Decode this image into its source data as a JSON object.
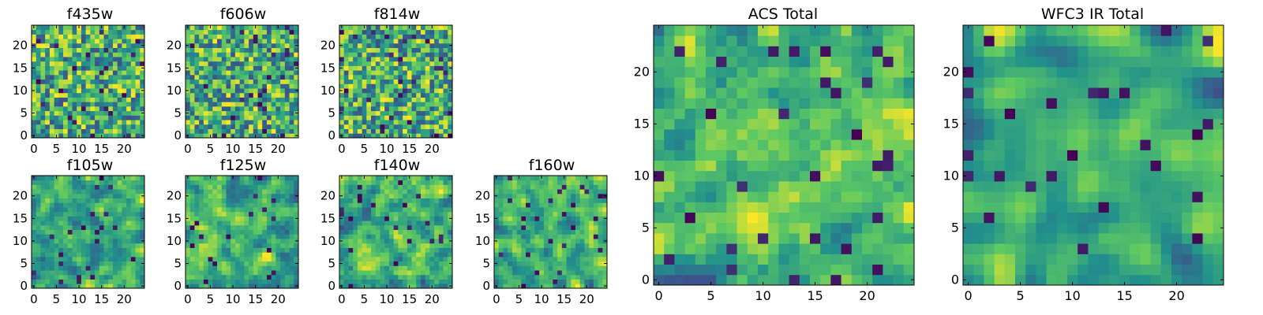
{
  "chart_data": [
    {
      "type": "heatmap",
      "title": "f435w",
      "x_ticks": [
        "0",
        "5",
        "10",
        "15",
        "20"
      ],
      "y_ticks": [
        "0",
        "5",
        "10",
        "15",
        "20"
      ],
      "grid": false,
      "colormap": "viridis",
      "seed": 11,
      "smooth": 0
    },
    {
      "type": "heatmap",
      "title": "f606w",
      "x_ticks": [
        "0",
        "5",
        "10",
        "15",
        "20"
      ],
      "y_ticks": [
        "0",
        "5",
        "10",
        "15",
        "20"
      ],
      "grid": false,
      "colormap": "viridis",
      "seed": 23,
      "smooth": 0
    },
    {
      "type": "heatmap",
      "title": "f814w",
      "x_ticks": [
        "0",
        "5",
        "10",
        "15",
        "20"
      ],
      "y_ticks": [
        "0",
        "5",
        "10",
        "15",
        "20"
      ],
      "grid": false,
      "colormap": "viridis",
      "seed": 37,
      "smooth": 0
    },
    {
      "type": "heatmap",
      "title": "f105w",
      "x_ticks": [
        "0",
        "5",
        "10",
        "15",
        "20"
      ],
      "y_ticks": [
        "0",
        "5",
        "10",
        "15",
        "20"
      ],
      "grid": false,
      "colormap": "viridis",
      "seed": 41,
      "smooth": 1
    },
    {
      "type": "heatmap",
      "title": "f125w",
      "x_ticks": [
        "0",
        "5",
        "10",
        "15",
        "20"
      ],
      "y_ticks": [
        "0",
        "5",
        "10",
        "15",
        "20"
      ],
      "grid": false,
      "colormap": "viridis",
      "seed": 53,
      "smooth": 1
    },
    {
      "type": "heatmap",
      "title": "f140w",
      "x_ticks": [
        "0",
        "5",
        "10",
        "15",
        "20"
      ],
      "y_ticks": [
        "0",
        "5",
        "10",
        "15",
        "20"
      ],
      "grid": false,
      "colormap": "viridis",
      "seed": 67,
      "smooth": 1
    },
    {
      "type": "heatmap",
      "title": "f160w",
      "x_ticks": [
        "0",
        "5",
        "10",
        "15",
        "20"
      ],
      "y_ticks": [
        "0",
        "5",
        "10",
        "15",
        "20"
      ],
      "grid": false,
      "colormap": "viridis",
      "seed": 79,
      "smooth": 1
    },
    {
      "type": "heatmap",
      "title": "ACS Total",
      "x_ticks": [
        "0",
        "5",
        "10",
        "15",
        "20"
      ],
      "y_ticks": [
        "0",
        "5",
        "10",
        "15",
        "20"
      ],
      "grid": false,
      "colormap": "viridis",
      "seed": 97,
      "smooth": 1
    },
    {
      "type": "heatmap",
      "title": "WFC3 IR Total",
      "x_ticks": [
        "0",
        "5",
        "10",
        "15",
        "20"
      ],
      "y_ticks": [
        "0",
        "5",
        "10",
        "15",
        "20"
      ],
      "grid": false,
      "colormap": "viridis",
      "seed": 113,
      "smooth": 2
    }
  ],
  "grid_size": 25,
  "colors": {
    "viridis_stops": [
      "#440154",
      "#3b528b",
      "#21918c",
      "#5ec962",
      "#fde725"
    ],
    "axis": "#000000",
    "background": "#ffffff"
  }
}
